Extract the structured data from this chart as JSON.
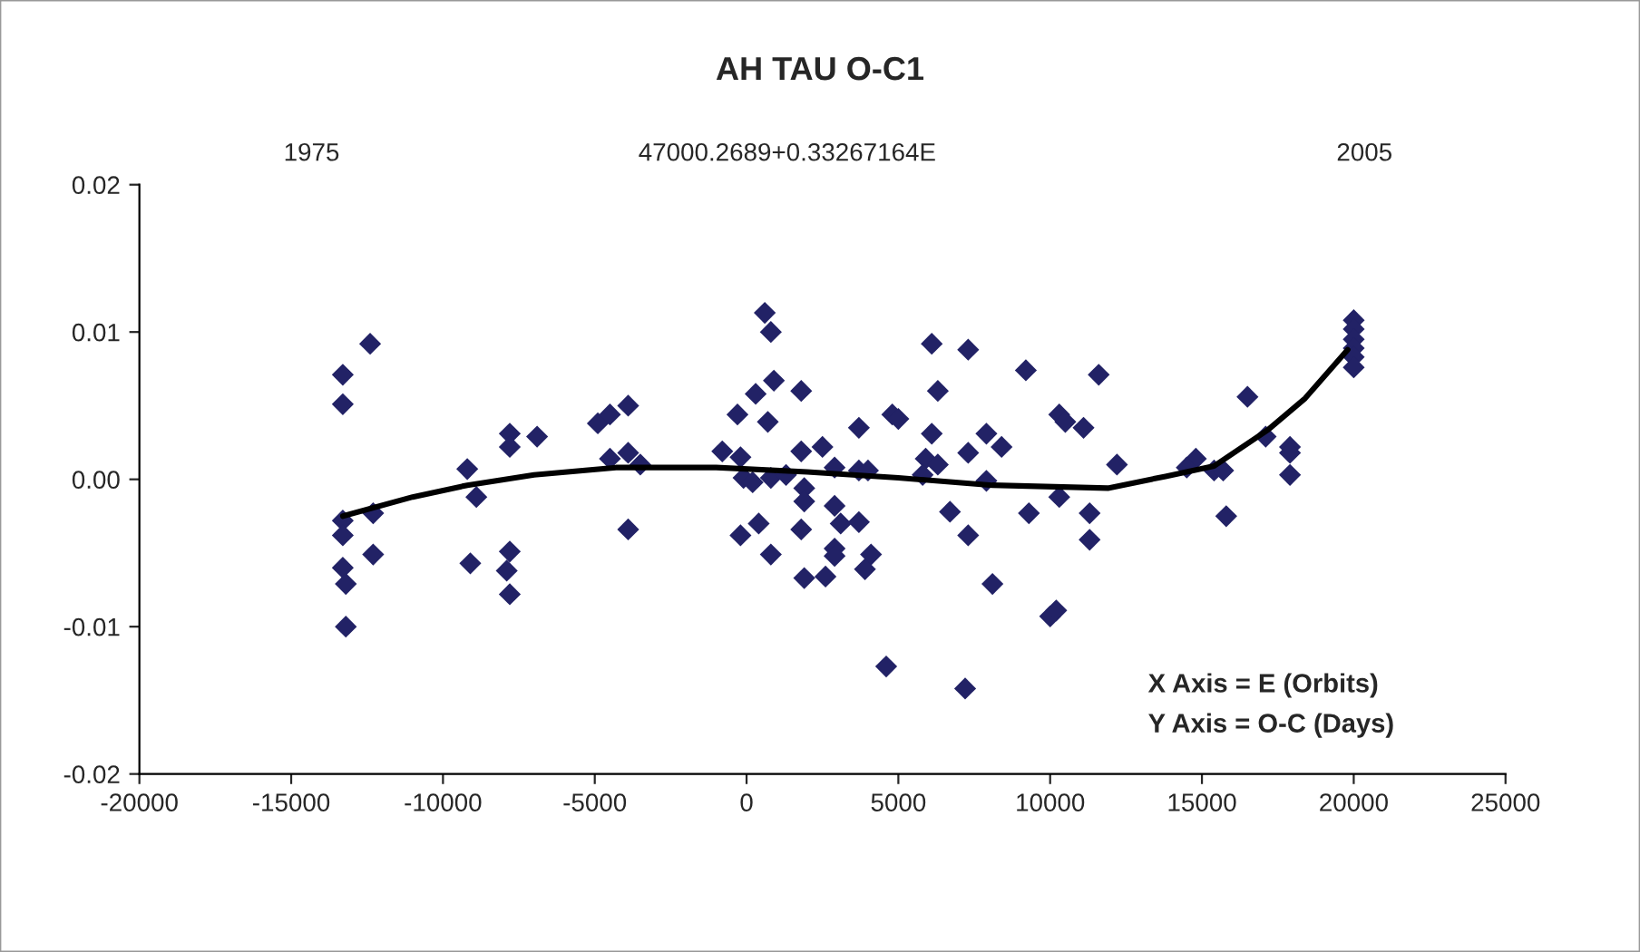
{
  "chart_data": {
    "type": "scatter",
    "title": "AH TAU O-C1",
    "annotations": [
      "1975",
      "47000.2689+0.33267164E",
      "2005",
      "X Axis = E (Orbits)",
      "Y Axis = O-C (Days)"
    ],
    "xlim": [
      -20000,
      25000
    ],
    "xticks": [
      -20000,
      -15000,
      -10000,
      -5000,
      0,
      5000,
      10000,
      15000,
      20000,
      25000
    ],
    "ylim": [
      -0.02,
      0.02
    ],
    "yticks": [
      {
        "value": -0.02,
        "label": "-0.02"
      },
      {
        "value": -0.01,
        "label": "-0.01"
      },
      {
        "value": 0,
        "label": "0.00"
      },
      {
        "value": 0.01,
        "label": "0.01"
      },
      {
        "value": 0.02,
        "label": "0.02"
      }
    ],
    "grid": false,
    "legend": false,
    "series": [
      {
        "color": "#222266",
        "marker": "diamond",
        "x": [
          -13300,
          -13300,
          -13300,
          -13300,
          -13300,
          -13200,
          -13200,
          -12400,
          -12300,
          -12300,
          -9200,
          -8900,
          -9100,
          -7800,
          -7800,
          -6900,
          -7800,
          -7900,
          -7800,
          -4900,
          -4500,
          -3900,
          -4500,
          -3900,
          -3500,
          -3900,
          -300,
          -800,
          -200,
          -100,
          200,
          -200,
          300,
          600,
          800,
          900,
          700,
          1800,
          800,
          1300,
          1800,
          2500,
          2900,
          3700,
          3700,
          4000,
          1900,
          1900,
          2900,
          3100,
          3700,
          1800,
          400,
          800,
          2900,
          2900,
          4100,
          3900,
          1900,
          2600,
          4800,
          5000,
          6100,
          6300,
          7300,
          6100,
          5900,
          6300,
          5800,
          7300,
          7900,
          8400,
          7900,
          6700,
          7300,
          8100,
          4600,
          7200,
          9200,
          10300,
          10500,
          11100,
          11600,
          12200,
          10300,
          9300,
          11300,
          11300,
          10000,
          10200,
          16500,
          17100,
          17900,
          17900,
          17900,
          14800,
          14500,
          15400,
          15700,
          15800,
          20000,
          20000,
          20000,
          20000,
          20000,
          20000
        ],
        "values": [
          0.0071,
          0.0051,
          -0.0028,
          -0.0038,
          -0.006,
          -0.0071,
          -0.01,
          0.0092,
          -0.0023,
          -0.0051,
          0.0007,
          -0.0012,
          -0.0057,
          0.0031,
          0.0022,
          0.0029,
          -0.0049,
          -0.0062,
          -0.0078,
          0.0038,
          0.0044,
          0.005,
          0.0014,
          0.0018,
          0.001,
          -0.0034,
          0.0044,
          0.0019,
          0.0015,
          0.0001,
          -0.0002,
          -0.0038,
          0.0058,
          0.0113,
          0.01,
          0.0067,
          0.0039,
          0.006,
          0.0001,
          0.0003,
          0.0019,
          0.0022,
          0.0008,
          0.0035,
          0.0006,
          0.0006,
          -0.0006,
          -0.0015,
          -0.0018,
          -0.003,
          -0.0029,
          -0.0034,
          -0.003,
          -0.0051,
          -0.0047,
          -0.0052,
          -0.0051,
          -0.0061,
          -0.0067,
          -0.0066,
          0.0044,
          0.0041,
          0.0092,
          0.006,
          0.0088,
          0.0031,
          0.0014,
          0.001,
          0.0003,
          0.0018,
          0.0031,
          0.0022,
          -0.0001,
          -0.0022,
          -0.0038,
          -0.0071,
          -0.0127,
          -0.0142,
          0.0074,
          0.0044,
          0.0039,
          0.0035,
          0.0071,
          0.001,
          -0.0012,
          -0.0023,
          -0.0023,
          -0.0041,
          -0.0093,
          -0.0089,
          0.0056,
          0.0029,
          0.0022,
          0.0018,
          0.0003,
          0.0014,
          0.0008,
          0.0006,
          0.0006,
          -0.0025,
          0.0108,
          0.0102,
          0.0095,
          0.0089,
          0.0083,
          0.0076
        ]
      },
      {
        "type": "line",
        "color": "#000000",
        "line_style": "solid",
        "x": [
          -13300,
          -11000,
          -9200,
          -7000,
          -4300,
          -1000,
          2000,
          5000,
          8100,
          11900,
          13800,
          15400,
          17200,
          18400,
          19800
        ],
        "values": [
          -0.0025,
          -0.0012,
          -0.0004,
          0.0003,
          0.0008,
          0.0008,
          0.0005,
          0.0001,
          -0.0004,
          -0.0006,
          0.0002,
          0.0009,
          0.0034,
          0.0055,
          0.0088
        ]
      }
    ]
  }
}
